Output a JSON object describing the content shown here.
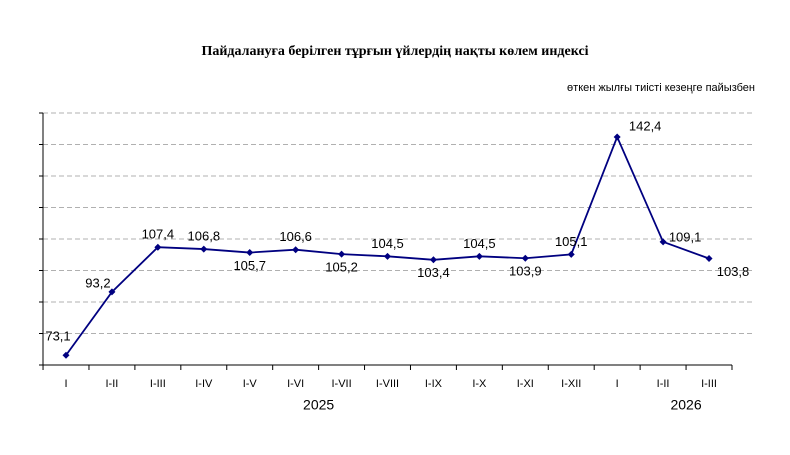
{
  "chart_data": {
    "type": "line",
    "title": "Пайдалануға берілген тұрғын үйлердің нақты көлем индексі",
    "subtitle": "өткен жылғы тиісті кезеңге пайызбен",
    "categories": [
      "I",
      "I-II",
      "I-III",
      "I-IV",
      "I-V",
      "I-VI",
      "I-VII",
      "I-VIII",
      "I-IX",
      "I-X",
      "I-XI",
      "I-XII",
      "I",
      "I-II",
      "I-III"
    ],
    "year_labels": [
      "2025",
      "2026"
    ],
    "series": [
      {
        "color": "#000080",
        "values": [
          73.1,
          93.2,
          107.4,
          106.8,
          105.7,
          106.6,
          105.2,
          104.5,
          103.4,
          104.5,
          103.9,
          105.1,
          142.4,
          109.1,
          103.8
        ],
        "value_labels": [
          "73,1",
          "93,2",
          "107,4",
          "106,8",
          "105,7",
          "106,6",
          "105,2",
          "104,5",
          "103,4",
          "104,5",
          "103,9",
          "105,1",
          "142,4",
          "109,1",
          "103,8"
        ]
      }
    ],
    "ylim": [
      70,
      150
    ],
    "yticks": [
      70,
      80,
      90,
      100,
      110,
      120,
      130,
      140,
      150
    ],
    "grid": true
  }
}
